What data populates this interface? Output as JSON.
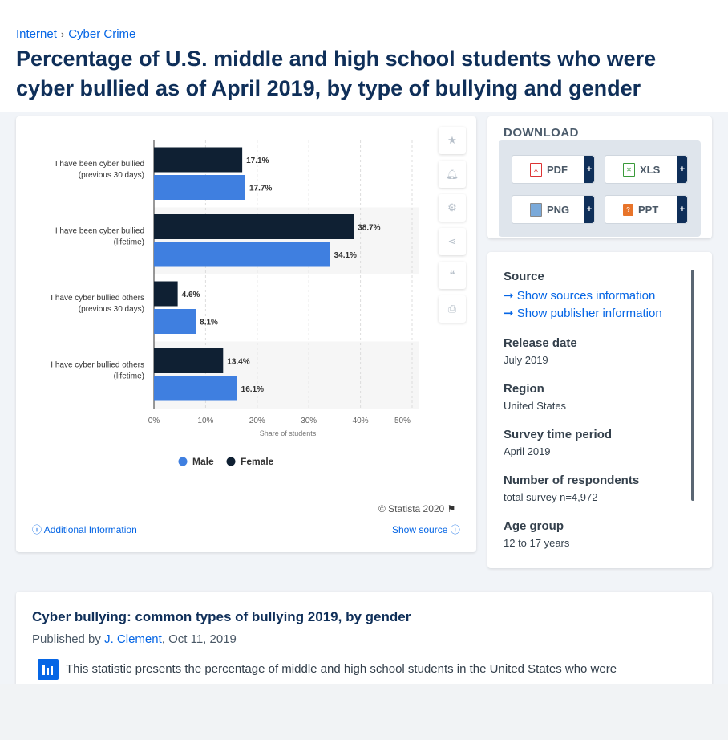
{
  "breadcrumb": {
    "items": [
      "Internet",
      "Cyber Crime"
    ]
  },
  "page_title": "Percentage of U.S. middle and high school students who were cyber bullied as of April 2019, by type of bullying and gender",
  "chart_data": {
    "type": "bar",
    "orientation": "horizontal",
    "categories": [
      [
        "I have been cyber bullied",
        "(previous 30 days)"
      ],
      [
        "I have been cyber bullied",
        "(lifetime)"
      ],
      [
        "I have cyber bullied others",
        "(previous 30 days)"
      ],
      [
        "I have cyber bullied others",
        "(lifetime)"
      ]
    ],
    "series": [
      {
        "name": "Female",
        "color": "#0f2033",
        "values": [
          17.1,
          38.7,
          4.6,
          13.4
        ]
      },
      {
        "name": "Male",
        "color": "#3f7fe0",
        "values": [
          17.7,
          34.1,
          8.1,
          16.1
        ]
      }
    ],
    "data_labels": [
      [
        "17.1%",
        "38.7%",
        "4.6%",
        "13.4%"
      ],
      [
        "17.7%",
        "34.1%",
        "8.1%",
        "16.1%"
      ]
    ],
    "xlabel": "Share of students",
    "xlim": [
      0,
      50
    ],
    "xticks": [
      "0%",
      "10%",
      "20%",
      "30%",
      "40%",
      "50%"
    ],
    "legend": [
      "Male",
      "Female"
    ],
    "legend_position": "bottom",
    "grid": true
  },
  "chart_footer": {
    "copyright": "© Statista 2020",
    "additional_info": "Additional Information",
    "show_source": "Show source"
  },
  "download": {
    "title": "DOWNLOAD",
    "buttons": [
      "PDF",
      "XLS",
      "PNG",
      "PPT"
    ],
    "plus": "+"
  },
  "info": {
    "source_label": "Source",
    "show_sources": "Show sources information",
    "show_publisher": "Show publisher information",
    "release_label": "Release date",
    "release_value": "July 2019",
    "region_label": "Region",
    "region_value": "United States",
    "survey_label": "Survey time period",
    "survey_value": "April 2019",
    "respondents_label": "Number of respondents",
    "respondents_value": "total survey n=4,972",
    "age_label": "Age group",
    "age_value": "12 to 17 years"
  },
  "article": {
    "title": "Cyber bullying: common types of bullying 2019, by gender",
    "published_prefix": "Published by ",
    "author": "J. Clement",
    "date": ", Oct 11, 2019",
    "text": "This statistic presents the percentage of middle and high school students in the United States who were"
  }
}
